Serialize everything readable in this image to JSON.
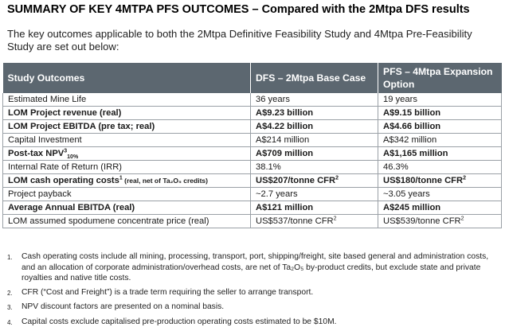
{
  "title": "SUMMARY OF KEY 4MTPA PFS OUTCOMES – Compared with the 2Mtpa DFS results",
  "intro": "The key outcomes applicable to both the 2Mtpa Definitive Feasibility Study and 4Mtpa Pre-Feasibility Study are set out below:",
  "table": {
    "headers": [
      "Study Outcomes",
      "DFS – 2Mtpa Base Case",
      "PFS – 4Mtpa Expansion Option"
    ],
    "rows": [
      {
        "label": "Estimated Mine Life",
        "dfs": "36 years",
        "pfs": "19 years",
        "bold": false
      },
      {
        "label": "LOM Project revenue (real)",
        "dfs": "A$9.23 billion",
        "pfs": "A$9.15 billion",
        "bold": true
      },
      {
        "label": "LOM Project EBITDA (pre tax; real)",
        "dfs": "A$4.22 billion",
        "pfs": "A$4.66 billion",
        "bold": true
      },
      {
        "label": "Capital Investment",
        "dfs": "A$214 million",
        "pfs": "A$342 million",
        "bold": false
      },
      {
        "label": "Post-tax NPV",
        "label_sup": "3",
        "label_sub": "10%",
        "dfs": "A$709 million",
        "pfs": "A$1,165 million",
        "bold": true
      },
      {
        "label": "Internal Rate of Return (IRR)",
        "dfs": "38.1%",
        "pfs": "46.3%",
        "bold": false
      },
      {
        "label": "LOM cash operating costs",
        "label_sup": "1",
        "label_small": " (real, net of Ta₂O₅ credits)",
        "dfs": "US$207/tonne CFR",
        "dfs_sup": "2",
        "pfs": "US$180/tonne CFR",
        "pfs_sup": "2",
        "bold": true
      },
      {
        "label": "Project payback",
        "dfs": "~2.7 years",
        "pfs": "~3.05 years",
        "bold": false
      },
      {
        "label": "Average Annual EBITDA (real)",
        "dfs": "A$121 million",
        "pfs": "A$245 million",
        "bold": true
      },
      {
        "label": "LOM assumed spodumene concentrate price (real)",
        "dfs": "US$537/tonne CFR",
        "dfs_sup": "2",
        "pfs": "US$539/tonne CFR",
        "pfs_sup": "2",
        "bold": false
      }
    ]
  },
  "notes": [
    {
      "num": "1.",
      "text": "Cash operating costs include all mining, processing, transport, port, shipping/freight, site based general and administration costs, and an allocation of corporate administration/overhead costs, are net of Ta₂O₅ by-product credits, but exclude state and private royalties and native title costs."
    },
    {
      "num": "2.",
      "text": "CFR (“Cost and Freight”) is a trade term requiring the seller to arrange transport."
    },
    {
      "num": "3.",
      "text": "NPV discount factors are presented on a nominal basis."
    },
    {
      "num": "4.",
      "text": "Capital costs exclude capitalised pre-production operating costs estimated to be $10M."
    }
  ]
}
